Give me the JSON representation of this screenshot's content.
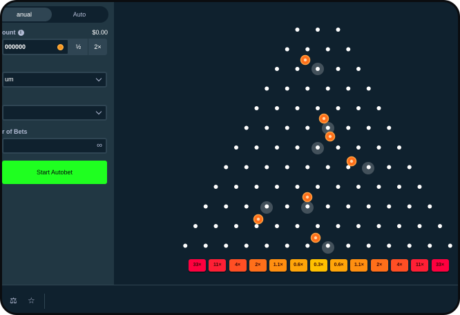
{
  "sidebar": {
    "tabs": [
      {
        "label": "anual",
        "active": true
      },
      {
        "label": "Auto",
        "active": false
      }
    ],
    "bet_amount_label": "ount",
    "bet_amount_value": "$0.00",
    "amount_input_value": "000000",
    "half_label": "½",
    "double_label": "2×",
    "risk_value": "um",
    "rows_value": "",
    "number_of_bets_label": "r of Bets",
    "infinity_symbol": "∞",
    "start_autobet_label": "Start Autobet"
  },
  "board": {
    "multipliers": [
      "33×",
      "11×",
      "4×",
      "2×",
      "1.1×",
      "0.6×",
      "0.3×",
      "0.6×",
      "1.1×",
      "2×",
      "4×",
      "11×",
      "33×"
    ],
    "multiplier_colors": [
      "#ff003f",
      "#ff1f35",
      "#ff4f24",
      "#ff6f1a",
      "#ff8f10",
      "#ffa509",
      "#ffc000",
      "#ffa509",
      "#ff8f10",
      "#ff6f1a",
      "#ff4f24",
      "#ff1f35",
      "#ff003f"
    ],
    "ball_color": "#ff6f1a",
    "peg_color": "#ffffff"
  },
  "bottombar": {
    "icons": [
      "fairness-icon",
      "star-icon"
    ]
  },
  "colors": {
    "accent": "#1fff20",
    "sidebar_bg": "#213743",
    "board_bg": "#0f212e"
  }
}
